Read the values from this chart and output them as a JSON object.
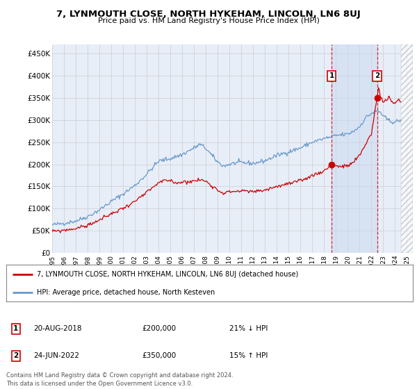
{
  "title": "7, LYNMOUTH CLOSE, NORTH HYKEHAM, LINCOLN, LN6 8UJ",
  "subtitle": "Price paid vs. HM Land Registry's House Price Index (HPI)",
  "ylabel_ticks": [
    "£0",
    "£50K",
    "£100K",
    "£150K",
    "£200K",
    "£250K",
    "£300K",
    "£350K",
    "£400K",
    "£450K"
  ],
  "ytick_vals": [
    0,
    50000,
    100000,
    150000,
    200000,
    250000,
    300000,
    350000,
    400000,
    450000
  ],
  "ylim": [
    0,
    470000
  ],
  "xlim_start": 1995.0,
  "xlim_end": 2025.5,
  "xtick_years": [
    1995,
    1996,
    1997,
    1998,
    1999,
    2000,
    2001,
    2002,
    2003,
    2004,
    2005,
    2006,
    2007,
    2008,
    2009,
    2010,
    2011,
    2012,
    2013,
    2014,
    2015,
    2016,
    2017,
    2018,
    2019,
    2020,
    2021,
    2022,
    2023,
    2024,
    2025
  ],
  "background_color": "#ffffff",
  "plot_bg_color": "#e8eef8",
  "grid_color": "#cccccc",
  "hpi_color": "#6699cc",
  "price_color": "#cc0000",
  "legend_label_price": "7, LYNMOUTH CLOSE, NORTH HYKEHAM, LINCOLN, LN6 8UJ (detached house)",
  "legend_label_hpi": "HPI: Average price, detached house, North Kesteven",
  "annotation1_date": "20-AUG-2018",
  "annotation1_price": "£200,000",
  "annotation1_hpi": "21% ↓ HPI",
  "annotation2_date": "24-JUN-2022",
  "annotation2_price": "£350,000",
  "annotation2_hpi": "15% ↑ HPI",
  "footer": "Contains HM Land Registry data © Crown copyright and database right 2024.\nThis data is licensed under the Open Government Licence v3.0.",
  "sale1_x": 2018.64,
  "sale1_y": 200000,
  "sale2_x": 2022.48,
  "sale2_y": 350000,
  "shade_color": "#c8d8f0",
  "hpi_seed": 42,
  "price_seed": 99
}
